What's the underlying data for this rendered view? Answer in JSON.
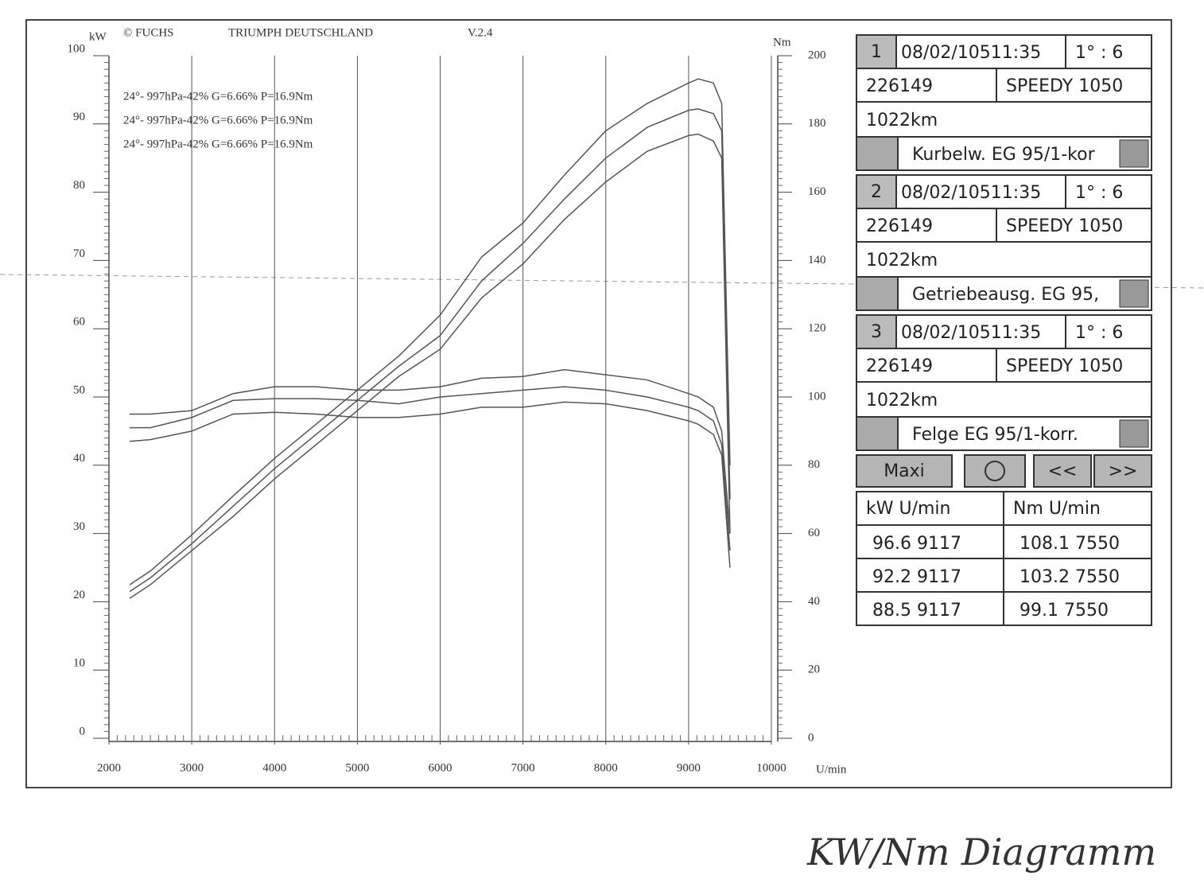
{
  "chart_data": {
    "type": "line",
    "header": [
      "© FUCHS",
      "TRIUMPH DEUTSCHLAND",
      "V.2.4"
    ],
    "annotations": [
      "24°- 997hPa-42% G=6.66% P=16.9Nm",
      "24°- 997hPa-42% G=6.66% P=16.9Nm",
      "24°- 997hPa-42% G=6.66% P=16.9Nm"
    ],
    "y_label": "kW",
    "y2_label": "Nm",
    "x_label": "U/min",
    "x": [
      2250,
      2500,
      3000,
      3500,
      4000,
      4500,
      5000,
      5500,
      6000,
      6500,
      7000,
      7500,
      8000,
      8500,
      9000,
      9117,
      9300,
      9400,
      9500
    ],
    "series": [
      {
        "color": "#555555",
        "values": [
          22.5,
          24.5,
          29.8,
          35.5,
          41,
          46,
          51,
          56,
          62,
          70.5,
          75.5,
          82.5,
          89,
          93,
          96,
          96.6,
          96,
          93,
          40
        ]
      },
      {
        "color": "#555555",
        "values": [
          21.5,
          23.5,
          28.5,
          34,
          39.5,
          44.5,
          49.5,
          54.5,
          59,
          67,
          72.5,
          79,
          85,
          89.5,
          92,
          92.2,
          91.5,
          89,
          35
        ]
      },
      {
        "color": "#555555",
        "values": [
          20.5,
          22.5,
          27.5,
          32.5,
          38,
          43,
          48,
          53,
          57,
          64.5,
          69.5,
          76,
          81.5,
          86,
          88.3,
          88.5,
          87.5,
          85,
          30
        ]
      },
      {
        "color": "#555555",
        "axis": "y2",
        "values": [
          95,
          95,
          96,
          101,
          103,
          103,
          102,
          102,
          103,
          105.5,
          106,
          108,
          106.5,
          105,
          101,
          100,
          97,
          90,
          60
        ]
      },
      {
        "color": "#555555",
        "axis": "y2",
        "values": [
          91,
          91,
          94,
          99,
          99.5,
          99.5,
          99,
          98,
          100,
          101,
          102,
          103,
          102,
          100,
          97,
          96,
          93,
          86,
          55
        ]
      },
      {
        "color": "#555555",
        "axis": "y2",
        "values": [
          87,
          87.5,
          90,
          95,
          95.5,
          95,
          94,
          94,
          95,
          97,
          97,
          98.5,
          98,
          96,
          93,
          92,
          89,
          83,
          50
        ]
      }
    ],
    "xlim": [
      2000,
      10000
    ],
    "xticks": [
      2000,
      3000,
      4000,
      5000,
      6000,
      7000,
      8000,
      9000,
      10000
    ],
    "ylim": [
      0,
      100
    ],
    "yticks": [
      0,
      10,
      20,
      30,
      40,
      50,
      60,
      70,
      80,
      90,
      100
    ],
    "y2lim": [
      0,
      200
    ],
    "y2ticks": [
      0,
      20,
      40,
      60,
      80,
      100,
      120,
      140,
      160,
      180,
      200
    ],
    "grid": "x"
  },
  "panel": {
    "runs": [
      {
        "index": "1",
        "date": "08/02/10511:35",
        "ratio": "1° : 6",
        "id": "226149",
        "name": "SPEEDY 1050",
        "km": "1022km",
        "channel": "Kurbelw. EG 95/1-kor"
      },
      {
        "index": "2",
        "date": "08/02/10511:35",
        "ratio": "1° : 6",
        "id": "226149",
        "name": "SPEEDY 1050",
        "km": "1022km",
        "channel": "Getriebeausg. EG 95,"
      },
      {
        "index": "3",
        "date": "08/02/10511:35",
        "ratio": "1° : 6",
        "id": "226149",
        "name": "SPEEDY 1050",
        "km": "1022km",
        "channel": "Felge EG 95/1-korr."
      }
    ],
    "buttons": [
      "Maxi",
      "<<",
      ">>"
    ],
    "table": {
      "header": [
        "kW   U/min",
        "Nm  U/min"
      ],
      "rows": [
        [
          "96.6  9117",
          "108.1  7550"
        ],
        [
          "92.2  9117",
          "103.2  7550"
        ],
        [
          "88.5  9117",
          "99.1  7550"
        ]
      ]
    }
  },
  "caption": "KW/Nm Diagramm"
}
